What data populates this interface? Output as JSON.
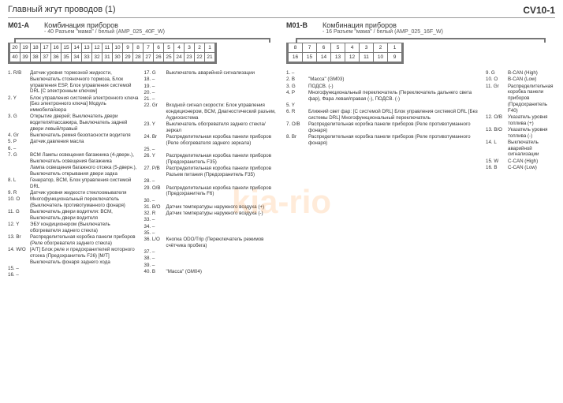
{
  "header": {
    "title": "Главный жгут проводов (1)",
    "code": "CV10-1"
  },
  "watermark": "kia-rio",
  "m01a": {
    "id": "M01-A",
    "title": "Комбинация приборов",
    "sub": "- 40 Разъем \"мама\" / белый (AMP_025_40F_W)",
    "conn_row1": [
      "20",
      "19",
      "18",
      "17",
      "16",
      "15",
      "14",
      "13",
      "12",
      "11",
      "10",
      "9",
      "8",
      "7",
      "6",
      "5",
      "4",
      "3",
      "2",
      "1"
    ],
    "conn_row2": [
      "40",
      "39",
      "38",
      "37",
      "36",
      "35",
      "34",
      "33",
      "32",
      "31",
      "30",
      "29",
      "28",
      "27",
      "26",
      "25",
      "24",
      "23",
      "22",
      "21"
    ],
    "left": [
      {
        "n": "1. R/B",
        "d": "Датчик уровня тормозной жидкости, Выключатель стояночного тормоза, Блок управления ESP, Блок управления системой DRL [С электронным ключом]"
      },
      {
        "n": "2. Y",
        "d": "Блок управления системой электронного ключа [Без электронного ключа] Модуль иммобилайзера"
      },
      {
        "n": "3. G",
        "d": "Открытие дверей; Выключатель двери водителя/пассажира, Выключатель задней двери левый/правый"
      },
      {
        "n": "4. Gr",
        "d": "Выключатель ремня безопасности водителя"
      },
      {
        "n": "5. P",
        "d": "Датчик давления масла"
      },
      {
        "n": "6. –",
        "d": ""
      },
      {
        "n": "7. G",
        "d": "BCM Лампы освещения багажника (4-дверн.), Выключатель освещения багажника"
      },
      {
        "n": "",
        "d": "Лампа освещения багажного отсека (5-дверн.), Выключатель открывания двери задка"
      },
      {
        "n": "8. L",
        "d": "Генератор, BCM, Блок управления системой DRL"
      },
      {
        "n": "9. R",
        "d": "Датчик уровня жидкости стеклоомывателя"
      },
      {
        "n": "10. O",
        "d": "Многофункциональный переключатель (Выключатель противотуманного фонаря)"
      },
      {
        "n": "11. G",
        "d": "Выключатель двери водителя: BCM, Выключатель двери водителя"
      },
      {
        "n": "12. Y",
        "d": "ЭБУ кондиционером (Выключатель обогревателя заднего стекла)"
      },
      {
        "n": "13. Br",
        "d": "Распределительная коробка панели приборов (Реле обогревателя заднего стекла)"
      },
      {
        "n": "14. W/O",
        "d": "[A/T] Блок реле и предохранителей моторного отсека (Предохранитель F26) [M/T] Выключатель фонаря заднего хода"
      },
      {
        "n": "15. –",
        "d": ""
      },
      {
        "n": "16. –",
        "d": ""
      }
    ],
    "right": [
      {
        "n": "17. G",
        "d": "Выключатель аварийной сигнализации"
      },
      {
        "n": "18. –",
        "d": ""
      },
      {
        "n": "19. –",
        "d": ""
      },
      {
        "n": "20. –",
        "d": ""
      },
      {
        "n": "21. –",
        "d": ""
      },
      {
        "n": "22. Gr",
        "d": "Входной сигнал скорости: Блок управления кондиционером, BCM, Диагностический разъем, Аудиосистема"
      },
      {
        "n": "23. Y",
        "d": "Выключатель обогревателя заднего стекла/зеркал"
      },
      {
        "n": "24. Br",
        "d": "Распределительная коробка панели приборов (Реле обогревателя заднего зеркала)"
      },
      {
        "n": "25. –",
        "d": ""
      },
      {
        "n": "26. Y",
        "d": "Распределительная коробка панели приборов (Предохранитель F35)"
      },
      {
        "n": "27. P/B",
        "d": "Распределительная коробка панели приборов Разъем питания (Предохранитель F35)"
      },
      {
        "n": "28. –",
        "d": ""
      },
      {
        "n": "29. O/B",
        "d": "Распределительная коробка панели приборов (Предохранитель F6)"
      },
      {
        "n": "30. –",
        "d": ""
      },
      {
        "n": "31. B/O",
        "d": "Датчик температуры наружного воздуха (+)"
      },
      {
        "n": "32. R",
        "d": "Датчик температуры наружного воздуха (-)"
      },
      {
        "n": "33. –",
        "d": ""
      },
      {
        "n": "34. –",
        "d": ""
      },
      {
        "n": "35. –",
        "d": ""
      },
      {
        "n": "36. L/O",
        "d": "Кнопка ODO/Trip (Переключатель режимов счётчика пробега)"
      },
      {
        "n": "37. –",
        "d": ""
      },
      {
        "n": "38. –",
        "d": ""
      },
      {
        "n": "39. –",
        "d": ""
      },
      {
        "n": "40. B",
        "d": "\"Масса\" (GM04)"
      }
    ]
  },
  "m01b": {
    "id": "M01-B",
    "title": "Комбинация приборов",
    "sub": "- 16 Разъем \"мама\" / белый (AMP_025_16F_W)",
    "conn_row1": [
      "8",
      "7",
      "6",
      "5",
      "4",
      "3",
      "2",
      "1"
    ],
    "conn_row2": [
      "16",
      "15",
      "14",
      "13",
      "12",
      "11",
      "10",
      "9"
    ],
    "left": [
      {
        "n": "1. –",
        "d": ""
      },
      {
        "n": "2. B",
        "d": "\"Масса\" (GM03)"
      },
      {
        "n": "3. G",
        "d": "ПОДСВ. (-)"
      },
      {
        "n": "4. P",
        "d": "Многофункциональный переключатель (Переключатель дальнего света фар), Фара левая/правая (-), ПОДСВ. (-)"
      },
      {
        "n": "5. Y",
        "d": ""
      },
      {
        "n": "6. R",
        "d": "Ближний свет фар: [С системой DRL] Блок управления системой DRL [Без системы DRL] Многофункциональный переключатель"
      },
      {
        "n": "7. O/B",
        "d": "Распределительная коробка панели приборов (Реле противотуманного фонаря)"
      },
      {
        "n": "8. Br",
        "d": "Распределительная коробка панели приборов (Реле противотуманного фонаря)"
      }
    ],
    "right": [
      {
        "n": "9. G",
        "d": "B-CAN (High)"
      },
      {
        "n": "10. O",
        "d": "B-CAN (Low)"
      },
      {
        "n": "11. Gr",
        "d": "Распределительная коробка панели приборов (Предохранитель F40)"
      },
      {
        "n": "12. O/B",
        "d": "Указатель уровня топлива (+)"
      },
      {
        "n": "13. B/O",
        "d": "Указатель уровня топлива (-)"
      },
      {
        "n": "14. L",
        "d": "Выключатель аварийной сигнализации"
      },
      {
        "n": "15. W",
        "d": "C-CAN (High)"
      },
      {
        "n": "16. B",
        "d": "C-CAN (Low)"
      }
    ]
  }
}
